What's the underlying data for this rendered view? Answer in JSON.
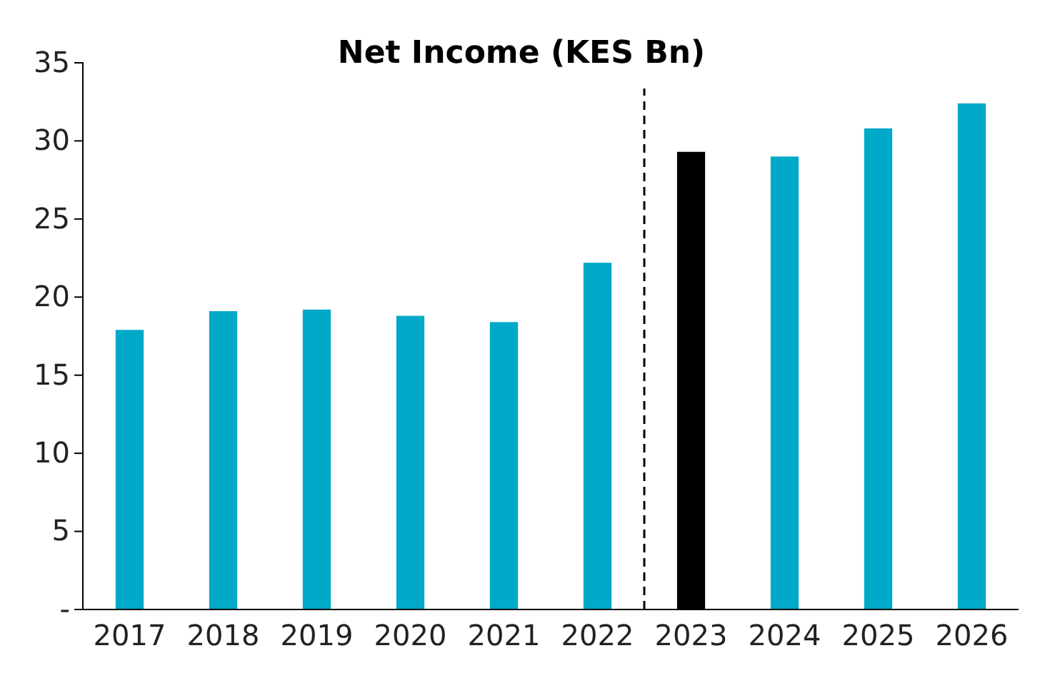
{
  "chart_data": {
    "type": "bar",
    "title": "Net Income (KES Bn)",
    "categories": [
      "2017",
      "2018",
      "2019",
      "2020",
      "2021",
      "2022",
      "2023",
      "2024",
      "2025",
      "2026"
    ],
    "values": [
      17.9,
      19.1,
      19.2,
      18.8,
      18.4,
      22.2,
      29.3,
      29.0,
      30.8,
      32.4
    ],
    "colors": [
      "#00a9c8",
      "#00a9c8",
      "#00a9c8",
      "#00a9c8",
      "#00a9c8",
      "#00a9c8",
      "#000000",
      "#00a9c8",
      "#00a9c8",
      "#00a9c8"
    ],
    "ylim": [
      0,
      35
    ],
    "yticks": [
      {
        "value": 0,
        "label": "-"
      },
      5,
      10,
      15,
      20,
      25,
      30,
      35
    ],
    "grid": false
  }
}
